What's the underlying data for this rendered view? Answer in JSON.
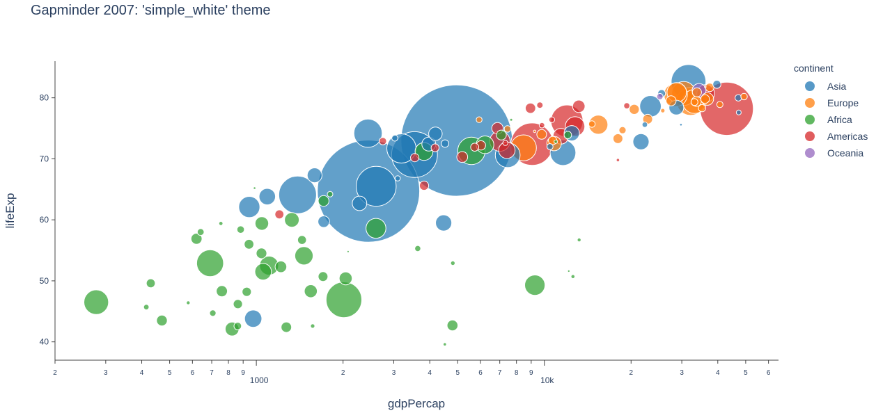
{
  "chart_data": {
    "type": "scatter",
    "subtype": "bubble",
    "title": "Gapminder 2007: 'simple_white' theme",
    "xlabel": "gdpPercap",
    "ylabel": "lifeExp",
    "xscale": "log",
    "xlim": [
      200,
      65000
    ],
    "ylim": [
      37,
      86
    ],
    "y_ticks": [
      40,
      50,
      60,
      70,
      80
    ],
    "x_major_ticks": [
      {
        "value": 1000,
        "label": "1000"
      },
      {
        "value": 10000,
        "label": "10k"
      }
    ],
    "x_minor_ticks": [
      {
        "value": 200,
        "label": "2"
      },
      {
        "value": 300,
        "label": "3"
      },
      {
        "value": 400,
        "label": "4"
      },
      {
        "value": 500,
        "label": "5"
      },
      {
        "value": 600,
        "label": "6"
      },
      {
        "value": 700,
        "label": "7"
      },
      {
        "value": 800,
        "label": "8"
      },
      {
        "value": 900,
        "label": "9"
      },
      {
        "value": 2000,
        "label": "2"
      },
      {
        "value": 3000,
        "label": "3"
      },
      {
        "value": 4000,
        "label": "4"
      },
      {
        "value": 5000,
        "label": "5"
      },
      {
        "value": 6000,
        "label": "6"
      },
      {
        "value": 7000,
        "label": "7"
      },
      {
        "value": 8000,
        "label": "8"
      },
      {
        "value": 9000,
        "label": "9"
      },
      {
        "value": 20000,
        "label": "2"
      },
      {
        "value": 30000,
        "label": "3"
      },
      {
        "value": 40000,
        "label": "4"
      },
      {
        "value": 50000,
        "label": "5"
      },
      {
        "value": 60000,
        "label": "6"
      }
    ],
    "grid": false,
    "legend_title": "continent",
    "legend_position": "right",
    "size_variable": "pop",
    "series": [
      {
        "name": "Asia",
        "color": "#1f77b4",
        "points": [
          {
            "x": 975,
            "y": 43.8,
            "size": 31.9
          },
          {
            "x": 29796,
            "y": 75.6,
            "size": 0.7
          },
          {
            "x": 1391,
            "y": 64.1,
            "size": 150.4
          },
          {
            "x": 1714,
            "y": 59.7,
            "size": 14.1
          },
          {
            "x": 4959,
            "y": 73.0,
            "size": 1318.7
          },
          {
            "x": 39725,
            "y": 82.2,
            "size": 6.98
          },
          {
            "x": 2452,
            "y": 64.7,
            "size": 1110.4
          },
          {
            "x": 3541,
            "y": 70.7,
            "size": 223.5
          },
          {
            "x": 11606,
            "y": 71.0,
            "size": 69.5
          },
          {
            "x": 4471,
            "y": 59.5,
            "size": 27.5
          },
          {
            "x": 25523,
            "y": 80.7,
            "size": 6.4
          },
          {
            "x": 31656,
            "y": 82.6,
            "size": 127.5
          },
          {
            "x": 4519,
            "y": 72.5,
            "size": 6.1
          },
          {
            "x": 1593,
            "y": 67.3,
            "size": 23.3
          },
          {
            "x": 23348,
            "y": 78.6,
            "size": 49.0
          },
          {
            "x": 47307,
            "y": 77.6,
            "size": 2.5
          },
          {
            "x": 10461,
            "y": 72.0,
            "size": 3.9
          },
          {
            "x": 12452,
            "y": 74.2,
            "size": 24.8
          },
          {
            "x": 3096,
            "y": 66.8,
            "size": 2.9
          },
          {
            "x": 945,
            "y": 62.1,
            "size": 47.8
          },
          {
            "x": 1091,
            "y": 63.8,
            "size": 28.9
          },
          {
            "x": 22316,
            "y": 75.6,
            "size": 3.2
          },
          {
            "x": 2606,
            "y": 65.5,
            "size": 169.3
          },
          {
            "x": 3190,
            "y": 71.7,
            "size": 91.1
          },
          {
            "x": 21655,
            "y": 72.8,
            "size": 27.6
          },
          {
            "x": 47143,
            "y": 80.0,
            "size": 4.6
          },
          {
            "x": 3970,
            "y": 72.4,
            "size": 20.4
          },
          {
            "x": 4185,
            "y": 74.1,
            "size": 19.3
          },
          {
            "x": 28718,
            "y": 78.4,
            "size": 23.2
          },
          {
            "x": 7458,
            "y": 70.6,
            "size": 65.1
          },
          {
            "x": 2442,
            "y": 74.2,
            "size": 85.3
          },
          {
            "x": 3025,
            "y": 73.4,
            "size": 4.0
          },
          {
            "x": 2281,
            "y": 62.7,
            "size": 22.2
          }
        ]
      },
      {
        "name": "Europe",
        "color": "#ff7f0e",
        "points": [
          {
            "x": 5937,
            "y": 76.4,
            "size": 3.6
          },
          {
            "x": 36126,
            "y": 79.8,
            "size": 8.2
          },
          {
            "x": 33693,
            "y": 79.4,
            "size": 10.4
          },
          {
            "x": 7446,
            "y": 74.9,
            "size": 4.6
          },
          {
            "x": 10681,
            "y": 73.0,
            "size": 7.3
          },
          {
            "x": 14619,
            "y": 75.7,
            "size": 4.5
          },
          {
            "x": 22833,
            "y": 76.5,
            "size": 10.2
          },
          {
            "x": 35278,
            "y": 78.3,
            "size": 5.5
          },
          {
            "x": 33207,
            "y": 79.3,
            "size": 5.2
          },
          {
            "x": 30470,
            "y": 80.7,
            "size": 61.1
          },
          {
            "x": 32170,
            "y": 79.4,
            "size": 82.4
          },
          {
            "x": 27538,
            "y": 79.5,
            "size": 10.7
          },
          {
            "x": 18009,
            "y": 73.3,
            "size": 10.0
          },
          {
            "x": 36181,
            "y": 81.8,
            "size": 0.3
          },
          {
            "x": 40676,
            "y": 78.9,
            "size": 4.1
          },
          {
            "x": 28570,
            "y": 80.5,
            "size": 58.1
          },
          {
            "x": 9254,
            "y": 74.5,
            "size": 0.7
          },
          {
            "x": 36798,
            "y": 79.8,
            "size": 16.6
          },
          {
            "x": 49357,
            "y": 80.2,
            "size": 4.6
          },
          {
            "x": 15390,
            "y": 75.6,
            "size": 38.5
          },
          {
            "x": 20510,
            "y": 78.1,
            "size": 10.6
          },
          {
            "x": 10808,
            "y": 72.5,
            "size": 22.3
          },
          {
            "x": 9787,
            "y": 74.0,
            "size": 10.2
          },
          {
            "x": 18678,
            "y": 74.7,
            "size": 5.4
          },
          {
            "x": 25768,
            "y": 77.9,
            "size": 2.0
          },
          {
            "x": 28821,
            "y": 80.9,
            "size": 40.4
          },
          {
            "x": 33860,
            "y": 80.9,
            "size": 9.0
          },
          {
            "x": 37506,
            "y": 81.7,
            "size": 7.6
          },
          {
            "x": 8458,
            "y": 71.8,
            "size": 71.2
          },
          {
            "x": 33203,
            "y": 79.4,
            "size": 60.8
          }
        ]
      },
      {
        "name": "Africa",
        "color": "#2ca02c",
        "points": [
          {
            "x": 6223,
            "y": 72.3,
            "size": 33.3
          },
          {
            "x": 4797,
            "y": 42.7,
            "size": 12.4
          },
          {
            "x": 1441,
            "y": 56.7,
            "size": 8.1
          },
          {
            "x": 12570,
            "y": 50.7,
            "size": 1.6
          },
          {
            "x": 1217,
            "y": 52.3,
            "size": 14.3
          },
          {
            "x": 430,
            "y": 49.6,
            "size": 8.4
          },
          {
            "x": 2042,
            "y": 50.4,
            "size": 17.7
          },
          {
            "x": 706,
            "y": 44.7,
            "size": 4.4
          },
          {
            "x": 1704,
            "y": 50.7,
            "size": 10.2
          },
          {
            "x": 986,
            "y": 65.2,
            "size": 0.7
          },
          {
            "x": 278,
            "y": 46.5,
            "size": 64.6
          },
          {
            "x": 3633,
            "y": 55.3,
            "size": 3.8
          },
          {
            "x": 1545,
            "y": 48.3,
            "size": 18.0
          },
          {
            "x": 2082,
            "y": 54.8,
            "size": 0.5
          },
          {
            "x": 5581,
            "y": 71.3,
            "size": 80.3
          },
          {
            "x": 12154,
            "y": 51.6,
            "size": 0.6
          },
          {
            "x": 641,
            "y": 58.0,
            "size": 4.9
          },
          {
            "x": 691,
            "y": 52.9,
            "size": 76.5
          },
          {
            "x": 13206,
            "y": 56.7,
            "size": 1.5
          },
          {
            "x": 753,
            "y": 59.4,
            "size": 1.7
          },
          {
            "x": 1328,
            "y": 60.0,
            "size": 22.9
          },
          {
            "x": 943,
            "y": 56.0,
            "size": 9.9
          },
          {
            "x": 580,
            "y": 46.4,
            "size": 1.5
          },
          {
            "x": 1463,
            "y": 54.1,
            "size": 35.6
          },
          {
            "x": 1569,
            "y": 42.6,
            "size": 2.0
          },
          {
            "x": 415,
            "y": 45.7,
            "size": 3.2
          },
          {
            "x": 12057,
            "y": 73.9,
            "size": 6.0
          },
          {
            "x": 1045,
            "y": 59.4,
            "size": 19.2
          },
          {
            "x": 759,
            "y": 48.3,
            "size": 13.3
          },
          {
            "x": 1042,
            "y": 54.5,
            "size": 12.0
          },
          {
            "x": 1803,
            "y": 64.2,
            "size": 3.3
          },
          {
            "x": 10957,
            "y": 72.8,
            "size": 1.3
          },
          {
            "x": 3820,
            "y": 71.2,
            "size": 33.8
          },
          {
            "x": 824,
            "y": 42.1,
            "size": 20.0
          },
          {
            "x": 4811,
            "y": 52.9,
            "size": 2.1
          },
          {
            "x": 620,
            "y": 56.9,
            "size": 12.9
          },
          {
            "x": 2014,
            "y": 46.9,
            "size": 135.0
          },
          {
            "x": 7670,
            "y": 76.4,
            "size": 0.8
          },
          {
            "x": 863,
            "y": 46.2,
            "size": 8.9
          },
          {
            "x": 1598,
            "y": 65.5,
            "size": 0.2
          },
          {
            "x": 1712,
            "y": 63.1,
            "size": 12.3
          },
          {
            "x": 862,
            "y": 42.6,
            "size": 6.1
          },
          {
            "x": 926,
            "y": 48.2,
            "size": 9.1
          },
          {
            "x": 9270,
            "y": 49.3,
            "size": 43.9
          },
          {
            "x": 2602,
            "y": 58.6,
            "size": 42.3
          },
          {
            "x": 4513,
            "y": 39.6,
            "size": 1.1
          },
          {
            "x": 1107,
            "y": 52.5,
            "size": 38.1
          },
          {
            "x": 882,
            "y": 58.4,
            "size": 5.7
          },
          {
            "x": 7093,
            "y": 73.9,
            "size": 10.3
          },
          {
            "x": 1056,
            "y": 51.5,
            "size": 29.2
          },
          {
            "x": 1271,
            "y": 42.4,
            "size": 11.7
          },
          {
            "x": 470,
            "y": 43.5,
            "size": 12.3
          }
        ]
      },
      {
        "name": "Americas",
        "color": "#d62728",
        "points": [
          {
            "x": 12779,
            "y": 75.3,
            "size": 40.3
          },
          {
            "x": 3822,
            "y": 65.6,
            "size": 9.1
          },
          {
            "x": 9066,
            "y": 72.4,
            "size": 190.0
          },
          {
            "x": 36319,
            "y": 80.7,
            "size": 33.4
          },
          {
            "x": 13172,
            "y": 78.6,
            "size": 16.3
          },
          {
            "x": 7007,
            "y": 72.9,
            "size": 44.2
          },
          {
            "x": 9645,
            "y": 78.8,
            "size": 4.1
          },
          {
            "x": 8948,
            "y": 78.3,
            "size": 11.4
          },
          {
            "x": 6025,
            "y": 72.2,
            "size": 9.3
          },
          {
            "x": 6873,
            "y": 75.0,
            "size": 13.8
          },
          {
            "x": 5728,
            "y": 71.9,
            "size": 6.9
          },
          {
            "x": 5186,
            "y": 70.3,
            "size": 12.6
          },
          {
            "x": 1202,
            "y": 60.9,
            "size": 8.5
          },
          {
            "x": 3548,
            "y": 70.2,
            "size": 7.5
          },
          {
            "x": 7321,
            "y": 72.6,
            "size": 2.8
          },
          {
            "x": 11978,
            "y": 76.2,
            "size": 108.7
          },
          {
            "x": 2749,
            "y": 72.9,
            "size": 5.7
          },
          {
            "x": 9809,
            "y": 75.5,
            "size": 3.2
          },
          {
            "x": 4173,
            "y": 71.8,
            "size": 6.7
          },
          {
            "x": 7409,
            "y": 71.4,
            "size": 28.7
          },
          {
            "x": 19329,
            "y": 78.7,
            "size": 3.9
          },
          {
            "x": 18009,
            "y": 69.8,
            "size": 1.1
          },
          {
            "x": 42952,
            "y": 78.2,
            "size": 301.1
          },
          {
            "x": 10611,
            "y": 76.4,
            "size": 3.4
          },
          {
            "x": 11416,
            "y": 73.7,
            "size": 26.1
          }
        ]
      },
      {
        "name": "Oceania",
        "color": "#9467bd",
        "points": [
          {
            "x": 34435,
            "y": 81.2,
            "size": 20.4
          },
          {
            "x": 25185,
            "y": 80.2,
            "size": 4.1
          }
        ]
      }
    ]
  }
}
